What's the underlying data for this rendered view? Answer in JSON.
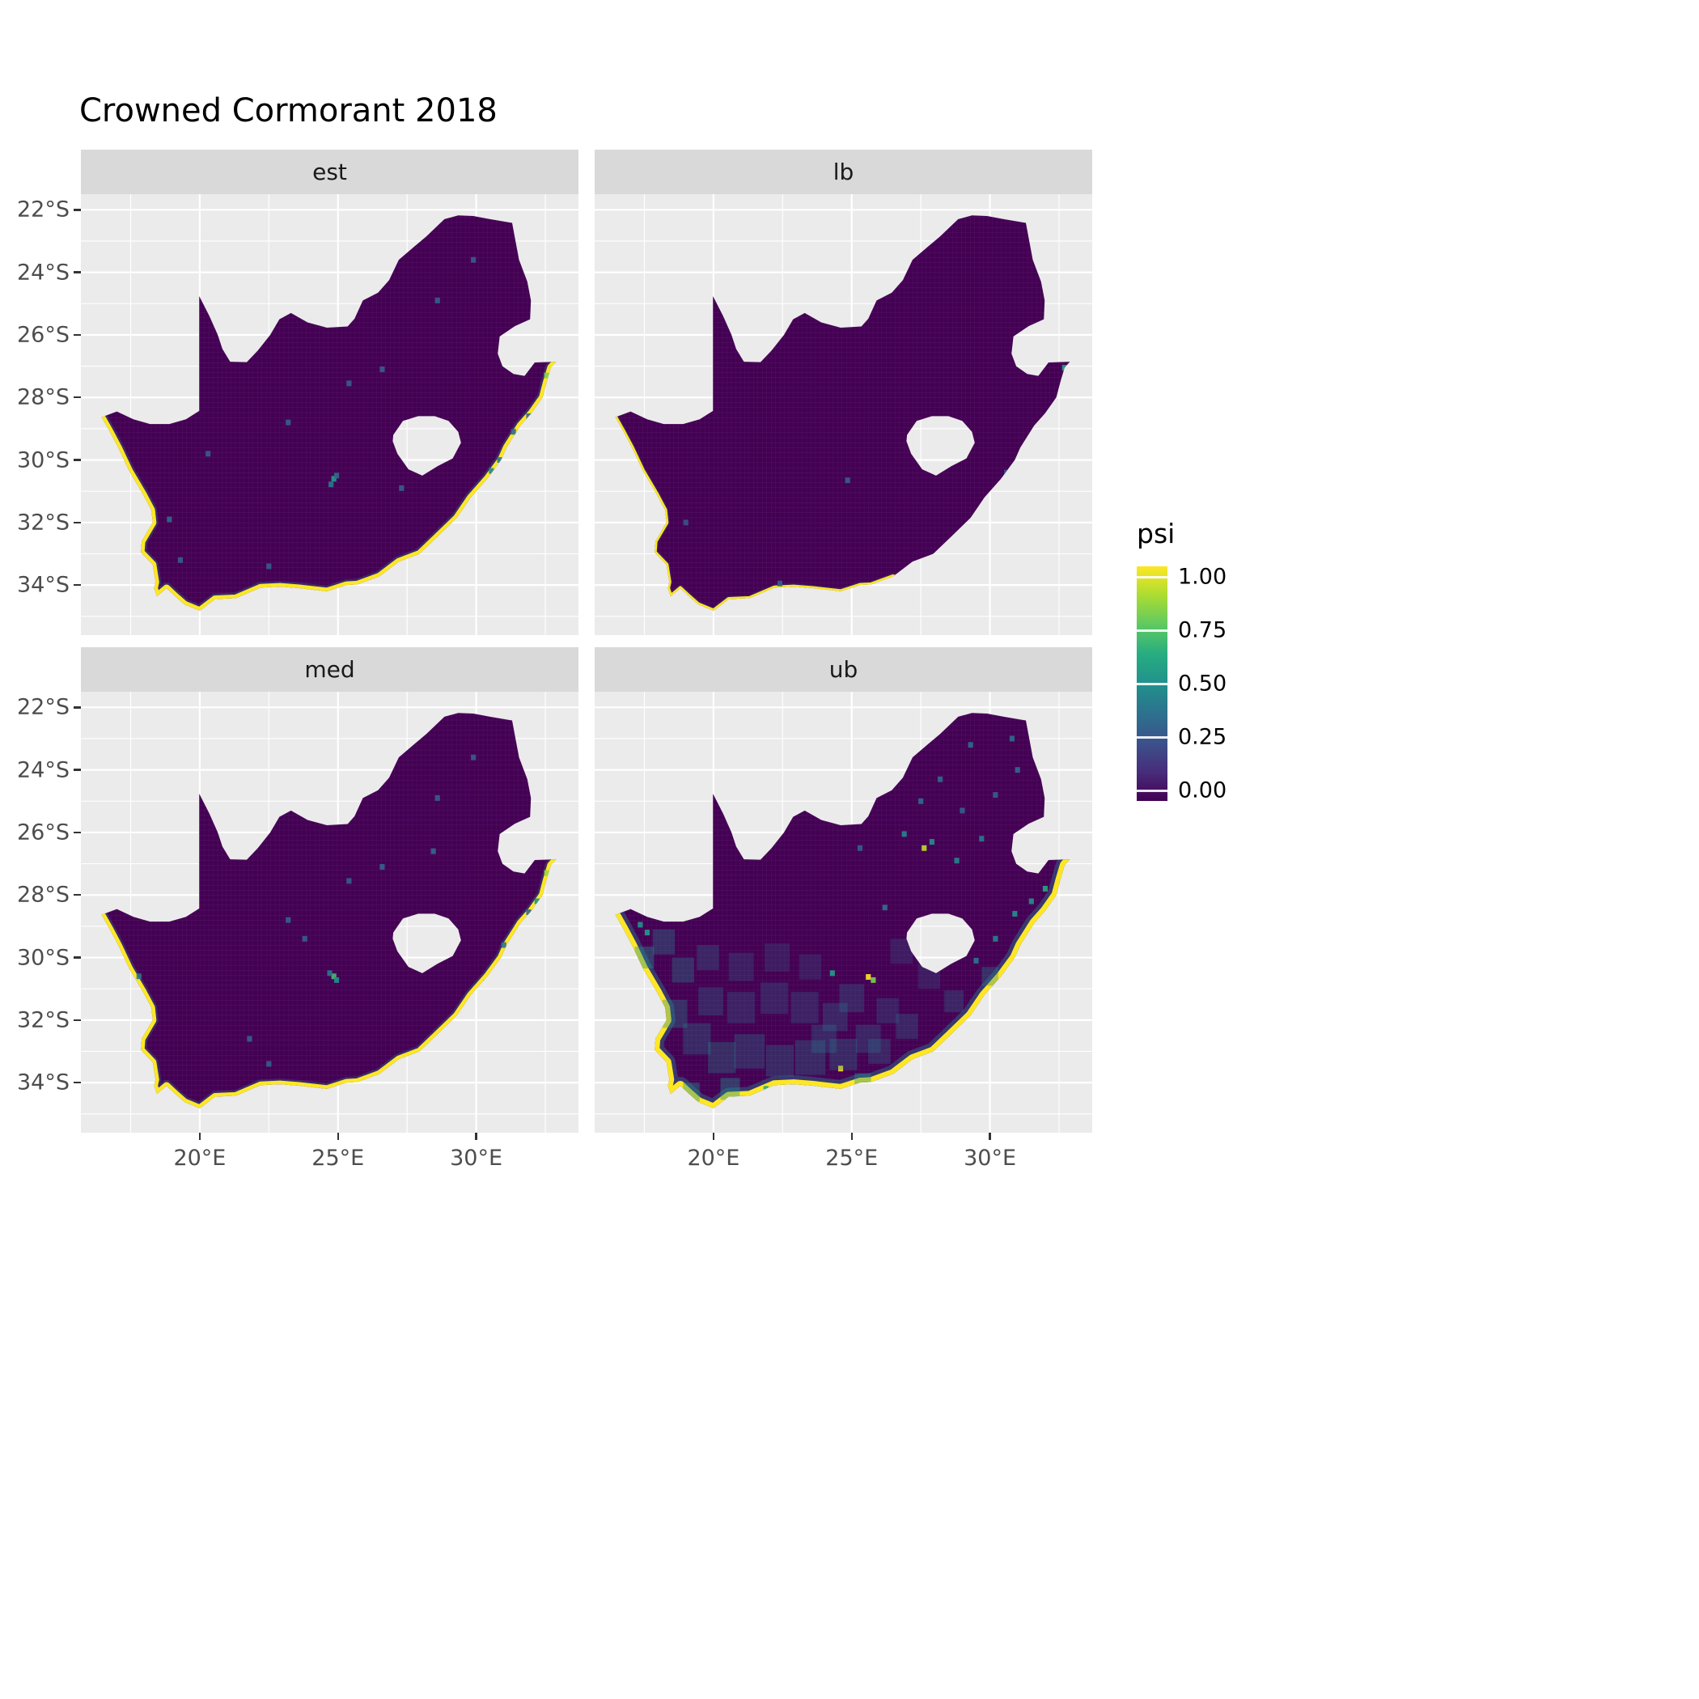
{
  "title": "Crowned Cormorant 2018",
  "facets": [
    {
      "key": "est",
      "label": "est"
    },
    {
      "key": "lb",
      "label": "lb"
    },
    {
      "key": "med",
      "label": "med"
    },
    {
      "key": "ub",
      "label": "ub"
    }
  ],
  "axes": {
    "x_ticks": [
      {
        "value": 20,
        "label": "20°E"
      },
      {
        "value": 25,
        "label": "25°E"
      },
      {
        "value": 30,
        "label": "30°E"
      }
    ],
    "y_ticks": [
      {
        "value": 22,
        "label": "22°S"
      },
      {
        "value": 24,
        "label": "24°S"
      },
      {
        "value": 26,
        "label": "26°S"
      },
      {
        "value": 28,
        "label": "28°S"
      },
      {
        "value": 30,
        "label": "30°S"
      },
      {
        "value": 32,
        "label": "32°S"
      },
      {
        "value": 34,
        "label": "34°S"
      }
    ]
  },
  "legend": {
    "title": "psi",
    "ticks": [
      {
        "value": 1.0,
        "label": "1.00"
      },
      {
        "value": 0.75,
        "label": "0.75"
      },
      {
        "value": 0.5,
        "label": "0.50"
      },
      {
        "value": 0.25,
        "label": "0.25"
      },
      {
        "value": 0.0,
        "label": "0.00"
      }
    ]
  },
  "colors": {
    "panel_background": "#EBEBEB",
    "strip_background": "#D9D9D9",
    "gridline": "#FFFFFF",
    "psi_min": "#440154",
    "psi_max": "#FDE725",
    "coast_halo": "#2A788E",
    "axis_text": "#4D4D4D",
    "title_text": "#000000"
  },
  "chart_data": {
    "type": "heatmap",
    "title": "Crowned Cormorant 2018",
    "region": "South Africa",
    "facets": [
      "est",
      "lb",
      "med",
      "ub"
    ],
    "fill_variable": "psi",
    "fill_scale": {
      "palette": "viridis",
      "limits": [
        0,
        1
      ],
      "legend_ticks": [
        1.0,
        0.75,
        0.5,
        0.25,
        0.0
      ],
      "stops": [
        [
          0,
          "#440154"
        ],
        [
          0.125,
          "#472d7b"
        ],
        [
          0.25,
          "#3b528b"
        ],
        [
          0.375,
          "#2c728e"
        ],
        [
          0.5,
          "#21918c"
        ],
        [
          0.625,
          "#27ad81"
        ],
        [
          0.75,
          "#5ec962"
        ],
        [
          0.875,
          "#aadc32"
        ],
        [
          1,
          "#fde725"
        ]
      ]
    },
    "x_axis": {
      "unit": "°E",
      "ticks": [
        20,
        25,
        30
      ],
      "range": [
        15.7,
        33.7
      ]
    },
    "y_axis": {
      "unit": "°S",
      "ticks": [
        22,
        24,
        26,
        28,
        30,
        32,
        34
      ],
      "range": [
        21.5,
        35.6
      ]
    },
    "baseline_psi": 0.0,
    "coastal_psi": 1.0,
    "coast_intensity": {
      "est": "high",
      "lb": "low",
      "med": "high",
      "ub": "very-high"
    },
    "speckles": {
      "est": [
        [
          24.85,
          30.6,
          0.55
        ],
        [
          24.75,
          30.78,
          0.4
        ],
        [
          24.95,
          30.5,
          0.35
        ],
        [
          23.2,
          28.8,
          0.3
        ],
        [
          25.4,
          27.55,
          0.3
        ],
        [
          26.6,
          27.1,
          0.3
        ],
        [
          28.6,
          24.9,
          0.3
        ],
        [
          29.9,
          23.6,
          0.3
        ],
        [
          30.55,
          30.35,
          0.45
        ],
        [
          30.85,
          30.0,
          0.4
        ],
        [
          31.35,
          29.1,
          0.35
        ],
        [
          31.9,
          28.6,
          0.35
        ],
        [
          20.3,
          29.8,
          0.3
        ],
        [
          18.9,
          31.9,
          0.35
        ],
        [
          19.3,
          33.2,
          0.3
        ],
        [
          22.5,
          33.4,
          0.3
        ],
        [
          27.3,
          30.9,
          0.3
        ],
        [
          32.55,
          27.3,
          0.8
        ],
        [
          32.75,
          27.0,
          1.0
        ]
      ],
      "lb": [
        [
          24.85,
          30.65,
          0.3
        ],
        [
          30.6,
          30.4,
          0.25
        ],
        [
          19.0,
          32.0,
          0.25
        ],
        [
          22.4,
          33.95,
          0.3
        ],
        [
          32.7,
          27.05,
          0.6
        ]
      ],
      "med": [
        [
          24.85,
          30.6,
          0.7
        ],
        [
          24.95,
          30.72,
          0.5
        ],
        [
          24.7,
          30.5,
          0.4
        ],
        [
          23.2,
          28.8,
          0.32
        ],
        [
          25.4,
          27.55,
          0.3
        ],
        [
          26.6,
          27.1,
          0.32
        ],
        [
          28.45,
          26.6,
          0.35
        ],
        [
          23.8,
          29.4,
          0.3
        ],
        [
          17.8,
          30.6,
          0.4
        ],
        [
          21.8,
          32.6,
          0.32
        ],
        [
          30.35,
          30.8,
          0.4
        ],
        [
          31.0,
          29.6,
          0.38
        ],
        [
          31.9,
          28.55,
          0.35
        ],
        [
          32.2,
          28.2,
          0.5
        ],
        [
          28.6,
          24.9,
          0.3
        ],
        [
          29.9,
          23.6,
          0.3
        ],
        [
          22.5,
          33.4,
          0.3
        ],
        [
          32.55,
          27.3,
          0.85
        ],
        [
          32.75,
          27.0,
          1.0
        ]
      ],
      "ub": [
        [
          25.6,
          30.62,
          1.0
        ],
        [
          25.78,
          30.72,
          0.8
        ],
        [
          24.3,
          30.5,
          0.55
        ],
        [
          27.62,
          26.5,
          0.9
        ],
        [
          27.9,
          26.3,
          0.5
        ],
        [
          26.9,
          26.05,
          0.45
        ],
        [
          28.8,
          26.9,
          0.45
        ],
        [
          29.7,
          26.2,
          0.4
        ],
        [
          24.6,
          33.55,
          1.0
        ],
        [
          21.9,
          34.2,
          0.6
        ],
        [
          30.9,
          28.6,
          0.5
        ],
        [
          30.2,
          29.4,
          0.45
        ],
        [
          29.5,
          30.1,
          0.4
        ],
        [
          31.5,
          28.2,
          0.5
        ],
        [
          32.0,
          27.8,
          0.6
        ],
        [
          17.6,
          29.2,
          0.55
        ],
        [
          17.35,
          28.95,
          0.5
        ],
        [
          28.2,
          24.3,
          0.35
        ],
        [
          26.2,
          28.4,
          0.38
        ],
        [
          29.3,
          23.2,
          0.35
        ],
        [
          30.8,
          23.0,
          0.35
        ],
        [
          27.5,
          25.0,
          0.35
        ],
        [
          25.3,
          26.5,
          0.3
        ],
        [
          29.0,
          25.3,
          0.3
        ],
        [
          31.0,
          24.0,
          0.35
        ],
        [
          30.2,
          24.8,
          0.3
        ],
        [
          18.6,
          31.8,
          0.45,
          0.9,
          0.35
        ],
        [
          19.4,
          32.6,
          0.45,
          1.0,
          0.3
        ],
        [
          20.3,
          33.2,
          0.5,
          1.0,
          0.3
        ],
        [
          21.3,
          33.0,
          0.45,
          1.1,
          0.3
        ],
        [
          22.4,
          33.3,
          0.45,
          1.0,
          0.3
        ],
        [
          23.5,
          33.2,
          0.45,
          1.1,
          0.3
        ],
        [
          24.7,
          33.1,
          0.45,
          1.0,
          0.3
        ],
        [
          25.6,
          32.6,
          0.4,
          0.9,
          0.3
        ],
        [
          19.9,
          31.4,
          0.4,
          0.9,
          0.3
        ],
        [
          21.0,
          31.6,
          0.4,
          1.0,
          0.28
        ],
        [
          22.2,
          31.3,
          0.4,
          1.0,
          0.28
        ],
        [
          23.3,
          31.6,
          0.4,
          1.0,
          0.28
        ],
        [
          24.4,
          31.9,
          0.4,
          0.9,
          0.3
        ],
        [
          18.9,
          30.4,
          0.45,
          0.8,
          0.35
        ],
        [
          19.8,
          30.0,
          0.4,
          0.8,
          0.3
        ],
        [
          21.0,
          30.3,
          0.35,
          0.9,
          0.28
        ],
        [
          22.3,
          30.0,
          0.35,
          0.9,
          0.25
        ],
        [
          23.5,
          30.3,
          0.35,
          0.8,
          0.25
        ],
        [
          25.0,
          31.3,
          0.4,
          0.9,
          0.3
        ],
        [
          26.3,
          31.7,
          0.38,
          0.8,
          0.28
        ],
        [
          26.0,
          33.0,
          0.4,
          0.8,
          0.3
        ],
        [
          17.5,
          30.0,
          0.5,
          0.7,
          0.4
        ],
        [
          18.2,
          29.5,
          0.45,
          0.8,
          0.35
        ],
        [
          24.0,
          32.6,
          0.42,
          0.9,
          0.3
        ],
        [
          26.8,
          29.8,
          0.35,
          0.8,
          0.25
        ],
        [
          27.8,
          30.6,
          0.35,
          0.8,
          0.25
        ],
        [
          28.7,
          31.4,
          0.4,
          0.7,
          0.3
        ],
        [
          30.0,
          30.6,
          0.45,
          0.6,
          0.35
        ],
        [
          27.0,
          32.2,
          0.4,
          0.8,
          0.3
        ],
        [
          25.4,
          34.0,
          0.5,
          0.6,
          0.4
        ],
        [
          20.6,
          34.2,
          0.5,
          0.7,
          0.4
        ],
        [
          19.2,
          34.3,
          0.5,
          0.6,
          0.4
        ]
      ]
    }
  }
}
